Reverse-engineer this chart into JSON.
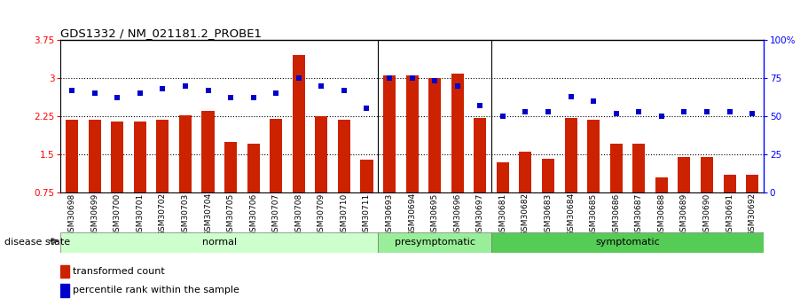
{
  "title": "GDS1332 / NM_021181.2_PROBE1",
  "samples": [
    "GSM30698",
    "GSM30699",
    "GSM30700",
    "GSM30701",
    "GSM30702",
    "GSM30703",
    "GSM30704",
    "GSM30705",
    "GSM30706",
    "GSM30707",
    "GSM30708",
    "GSM30709",
    "GSM30710",
    "GSM30711",
    "GSM30693",
    "GSM30694",
    "GSM30695",
    "GSM30696",
    "GSM30697",
    "GSM30681",
    "GSM30682",
    "GSM30683",
    "GSM30684",
    "GSM30685",
    "GSM30686",
    "GSM30687",
    "GSM30688",
    "GSM30689",
    "GSM30690",
    "GSM30691",
    "GSM30692"
  ],
  "bar_values": [
    2.18,
    2.18,
    2.15,
    2.15,
    2.18,
    2.27,
    2.35,
    1.75,
    1.72,
    2.2,
    3.45,
    2.25,
    2.18,
    1.4,
    3.05,
    3.05,
    3.0,
    3.08,
    2.22,
    1.35,
    1.55,
    1.42,
    2.22,
    2.18,
    1.72,
    1.72,
    1.05,
    1.45,
    1.45,
    1.1,
    1.1
  ],
  "dot_values_pct": [
    67,
    65,
    62,
    65,
    68,
    70,
    67,
    62,
    62,
    65,
    75,
    70,
    67,
    55,
    75,
    75,
    73,
    70,
    57,
    50,
    53,
    53,
    63,
    60,
    52,
    53,
    50,
    53,
    53,
    53,
    52
  ],
  "groups": [
    {
      "label": "normal",
      "start": 0,
      "end": 13,
      "color": "#ccffcc"
    },
    {
      "label": "presymptomatic",
      "start": 14,
      "end": 18,
      "color": "#99ee99"
    },
    {
      "label": "symptomatic",
      "start": 19,
      "end": 30,
      "color": "#55cc55"
    }
  ],
  "bar_color": "#cc2200",
  "dot_color": "#0000cc",
  "ylim_left": [
    0.75,
    3.75
  ],
  "ylim_right": [
    0,
    100
  ],
  "yticks_left": [
    0.75,
    1.5,
    2.25,
    3.0,
    3.75
  ],
  "ytick_labels_left": [
    "0.75",
    "1.5",
    "2.25",
    "3",
    "3.75"
  ],
  "yticks_right": [
    0,
    25,
    50,
    75,
    100
  ],
  "ytick_labels_right": [
    "0",
    "25",
    "50",
    "75",
    "100%"
  ],
  "hlines": [
    1.5,
    2.25,
    3.0
  ],
  "disease_state_label": "disease state",
  "legend_bar_label": "transformed count",
  "legend_dot_label": "percentile rank within the sample",
  "bar_width": 0.55,
  "background_color": "#ffffff"
}
